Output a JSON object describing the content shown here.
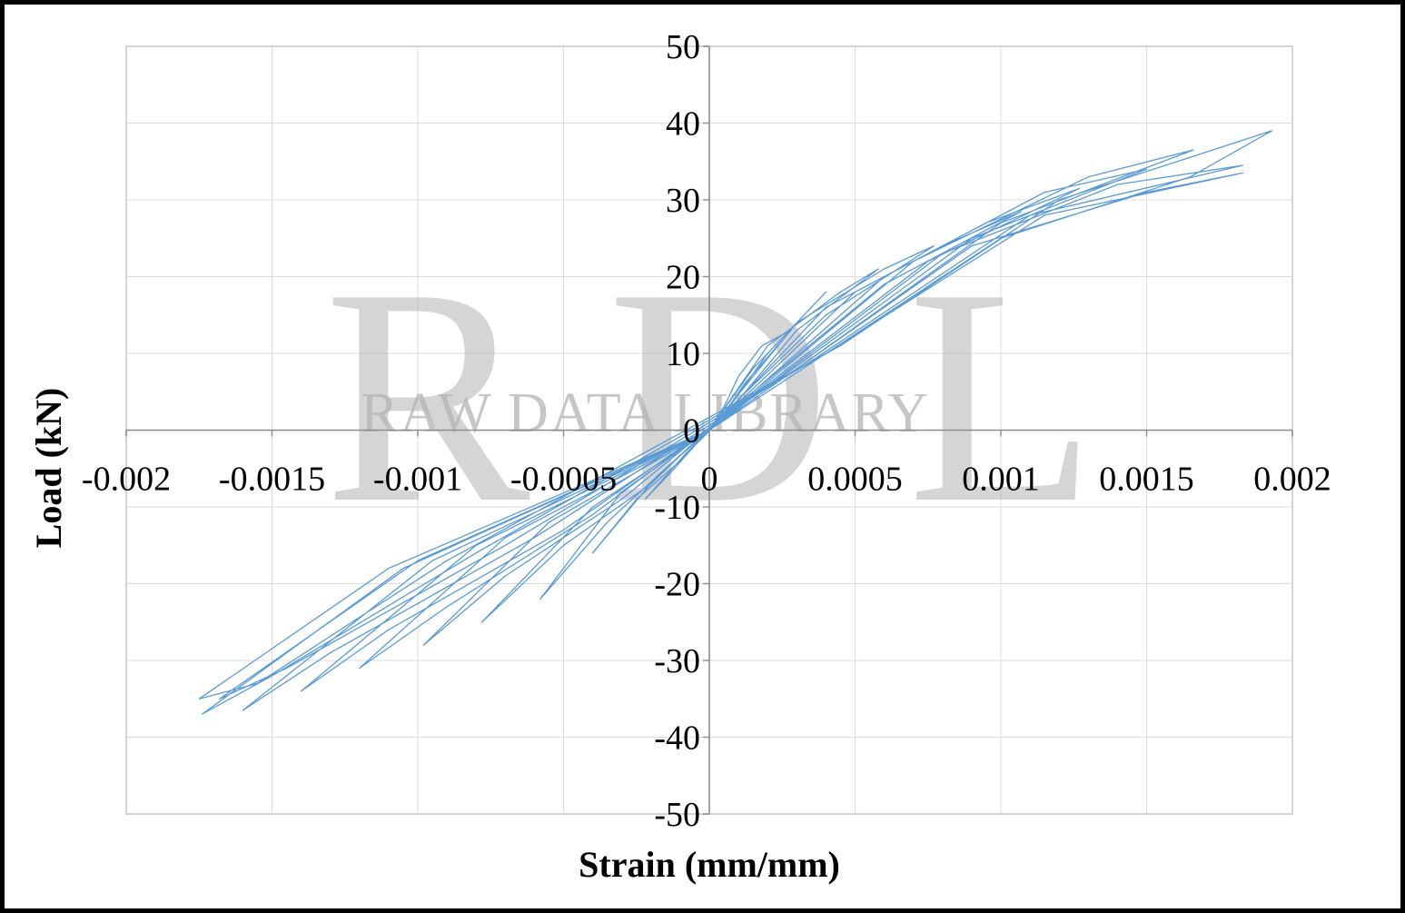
{
  "chart_data": {
    "type": "line",
    "xlabel": "Strain (mm/mm)",
    "ylabel": "Load (kN)",
    "xlim": [
      -0.002,
      0.002
    ],
    "ylim": [
      -50,
      50
    ],
    "x_ticks": [
      "-0.002",
      "-0.0015",
      "-0.001",
      "-0.0005",
      "0",
      "0.0005",
      "0.001",
      "0.0015",
      "0.002"
    ],
    "y_ticks": [
      "50",
      "40",
      "30",
      "20",
      "10",
      "0",
      "-10",
      "-20",
      "-30",
      "-40",
      "-50"
    ],
    "grid": true,
    "legend": "none",
    "series_color": "#5b9bd5",
    "series": [
      {
        "values_note_free": true,
        "x": [
          0,
          5e-05,
          0.0001,
          0.00018,
          0.00028,
          0.00012,
          3e-05,
          -5e-05,
          -0.00012,
          -0.00022,
          -8e-05,
          0,
          0.00015,
          0.0003,
          0.0004,
          0.0002,
          5e-05,
          -0.0001,
          -0.00025,
          -0.0004,
          -0.00018,
          0,
          0.0002,
          0.00045,
          0.00058,
          0.0003,
          8e-05,
          -0.00015,
          -0.00035,
          -0.00058,
          -0.0003,
          0,
          0.0003,
          0.0006,
          0.00077,
          0.0004,
          0.0001,
          -0.0002,
          -0.0005,
          -0.00078,
          -0.0004,
          0,
          0.0004,
          0.0008,
          0.00107,
          0.0006,
          0.00015,
          -0.0003,
          -0.0007,
          -0.00098,
          -0.00055,
          0,
          0.0005,
          0.00095,
          0.00127,
          0.00075,
          0.0002,
          -0.0004,
          -0.0009,
          -0.0012,
          -0.0007,
          0,
          0.0006,
          0.00115,
          0.0015,
          0.0009,
          0.00025,
          -0.0005,
          -0.0011,
          -0.0014,
          -0.0008,
          0,
          0.0007,
          0.0013,
          0.00166,
          0.001,
          0.0003,
          -0.0006,
          -0.0013,
          -0.0016,
          -0.00095,
          0,
          0.0008,
          0.0014,
          0.00183,
          0.0011,
          0.00035,
          -0.0007,
          -0.00145,
          -0.00168,
          -0.001,
          0,
          0.0009,
          0.0015,
          0.00183,
          0.00115,
          0.0004,
          -0.0008,
          -0.0015,
          -0.00174,
          -0.00105,
          0,
          0.001,
          0.00165,
          0.00193,
          0.0012,
          0.00045,
          -0.0009,
          -0.00155,
          -0.00175,
          -0.0011,
          0
        ],
        "y": [
          0,
          3,
          7,
          11,
          13,
          6,
          1,
          -2,
          -5,
          -9,
          -3,
          0,
          8,
          14,
          18,
          10,
          2,
          -4,
          -9,
          -16,
          -6,
          0,
          11,
          18,
          21,
          13,
          3,
          -5,
          -12,
          -22,
          -8,
          0,
          14,
          21,
          24,
          15,
          4,
          -7,
          -15,
          -25,
          -10,
          0,
          16,
          24,
          28.5,
          19,
          5,
          -9,
          -19,
          -28,
          -12,
          0,
          18,
          27,
          31.5,
          22,
          6,
          -11,
          -23,
          -31,
          -14,
          0,
          20,
          31,
          34,
          25,
          7,
          -13,
          -26,
          -34,
          -15,
          0,
          22,
          33,
          36.5,
          27,
          8,
          -14,
          -29,
          -36.5,
          -17,
          0,
          23,
          32,
          34.5,
          28,
          9,
          -15,
          -31,
          -35,
          -17,
          0,
          24,
          31,
          33.5,
          28,
          10,
          -16,
          -32,
          -37,
          -18,
          0,
          25,
          33,
          39,
          30,
          11,
          -17,
          -33,
          -35,
          -18,
          0
        ]
      }
    ]
  }
}
